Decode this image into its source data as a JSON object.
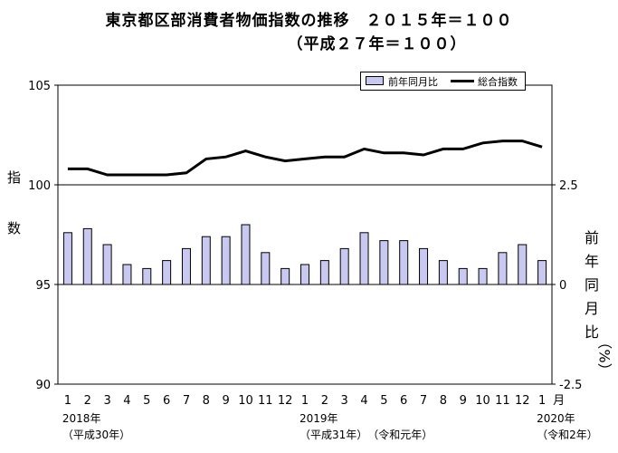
{
  "title_line1": "東京都区部消費者物価指数の推移　２０１５年＝１００",
  "title_line2": "（平成２７年＝１００）",
  "left_axis_label": "指数",
  "right_axis_label": "前年同月比",
  "right_axis_unit": "（%）",
  "legend": {
    "bar": "前年同月比",
    "line": "総合指数"
  },
  "month_unit": "月",
  "year_labels": [
    {
      "index": 0,
      "lines": [
        "2018年",
        "（平成30年）"
      ]
    },
    {
      "index": 12,
      "lines": [
        "2019年",
        "（平成31年）　（令和元年）"
      ]
    },
    {
      "index": 24,
      "lines": [
        "2020年",
        "（令和2年）"
      ]
    }
  ],
  "chart_data": {
    "type": "bar+line",
    "categories": [
      "1",
      "2",
      "3",
      "4",
      "5",
      "6",
      "7",
      "8",
      "9",
      "10",
      "11",
      "12",
      "1",
      "2",
      "3",
      "4",
      "5",
      "6",
      "7",
      "8",
      "9",
      "10",
      "11",
      "12",
      "1"
    ],
    "series": [
      {
        "name": "総合指数",
        "type": "line",
        "axis": "left",
        "values": [
          100.8,
          100.8,
          100.5,
          100.5,
          100.5,
          100.5,
          100.6,
          101.3,
          101.4,
          101.7,
          101.4,
          101.2,
          101.3,
          101.4,
          101.4,
          101.8,
          101.6,
          101.6,
          101.5,
          101.8,
          101.8,
          102.1,
          102.2,
          102.2,
          101.9
        ]
      },
      {
        "name": "前年同月比",
        "type": "bar",
        "axis": "right",
        "values": [
          1.3,
          1.4,
          1.0,
          0.5,
          0.4,
          0.6,
          0.9,
          1.2,
          1.2,
          1.5,
          0.8,
          0.4,
          0.5,
          0.6,
          0.9,
          1.3,
          1.1,
          1.1,
          0.9,
          0.6,
          0.4,
          0.4,
          0.8,
          1.0,
          0.6
        ]
      }
    ],
    "left_axis": {
      "ticks": [
        90,
        95,
        100,
        105
      ],
      "range": [
        90,
        105
      ]
    },
    "right_axis": {
      "ticks": [
        "-2.5",
        "0",
        "2.5"
      ],
      "range": [
        -2.5,
        2.5
      ]
    },
    "colors": {
      "bar": "#c8c8f0",
      "line": "#000000"
    }
  }
}
